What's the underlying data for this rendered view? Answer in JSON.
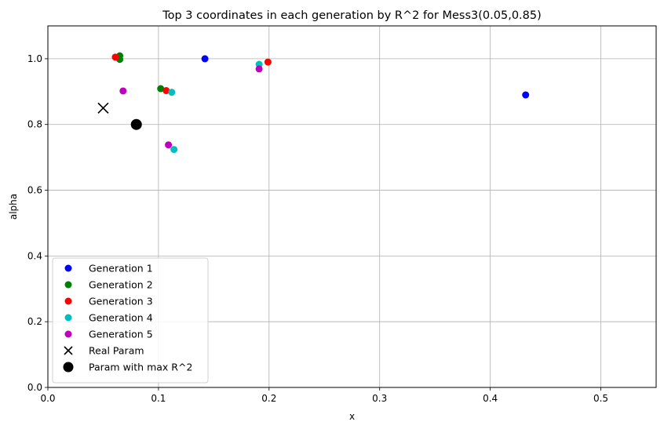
{
  "chart_data": {
    "type": "scatter",
    "title": "Top 3 coordinates in each generation by R^2 for Mess3(0.05,0.85)",
    "xlabel": "x",
    "ylabel": "alpha",
    "xlim": [
      0.0,
      0.55
    ],
    "ylim": [
      0.0,
      1.1
    ],
    "grid": true,
    "legend_position": "lower-left",
    "x_ticks": [
      0.0,
      0.1,
      0.2,
      0.3,
      0.4,
      0.5
    ],
    "x_tick_labels": [
      "0.0",
      "0.1",
      "0.2",
      "0.3",
      "0.4",
      "0.5"
    ],
    "y_ticks": [
      0.0,
      0.2,
      0.4,
      0.6,
      0.8,
      1.0
    ],
    "y_tick_labels": [
      "0.0",
      "0.2",
      "0.4",
      "0.6",
      "0.8",
      "1.0"
    ],
    "series": [
      {
        "name": "Generation 1",
        "color": "#0000ff",
        "marker": "circle",
        "points": [
          [
            0.142,
            1.0
          ],
          [
            0.432,
            0.89
          ]
        ]
      },
      {
        "name": "Generation 2",
        "color": "#008000",
        "marker": "circle",
        "points": [
          [
            0.065,
            1.009
          ],
          [
            0.065,
            0.998
          ],
          [
            0.102,
            0.909
          ]
        ]
      },
      {
        "name": "Generation 3",
        "color": "#ff0000",
        "marker": "circle",
        "points": [
          [
            0.061,
            1.005
          ],
          [
            0.107,
            0.903
          ],
          [
            0.199,
            0.99
          ]
        ]
      },
      {
        "name": "Generation 4",
        "color": "#00bfbf",
        "marker": "circle",
        "points": [
          [
            0.191,
            0.983
          ],
          [
            0.112,
            0.898
          ],
          [
            0.114,
            0.724
          ]
        ]
      },
      {
        "name": "Generation 5",
        "color": "#bf00bf",
        "marker": "circle",
        "points": [
          [
            0.068,
            0.902
          ],
          [
            0.109,
            0.738
          ],
          [
            0.191,
            0.969
          ]
        ]
      },
      {
        "name": "Real Param",
        "color": "#000000",
        "marker": "x",
        "points": [
          [
            0.05,
            0.85
          ]
        ]
      },
      {
        "name": "Param with max R^2",
        "color": "#000000",
        "marker": "big-circle",
        "points": [
          [
            0.08,
            0.8
          ]
        ]
      }
    ]
  }
}
